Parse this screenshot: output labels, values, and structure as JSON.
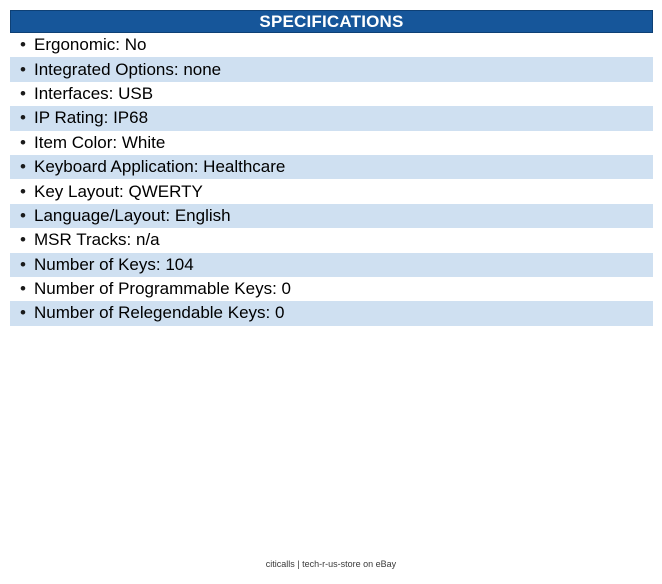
{
  "specs": {
    "title": "SPECIFICATIONS",
    "bullet_char": "•",
    "colors": {
      "header_bg": "#16569A",
      "header_border": "#0E4075",
      "header_text": "#FFFFFF",
      "row_bg": "#FFFFFF",
      "row_alt_bg": "#CFE0F1",
      "text": "#000000"
    },
    "items": [
      {
        "label": "Ergonomic",
        "value": "No",
        "text": "Ergonomic: No"
      },
      {
        "label": "Integrated Options",
        "value": "none",
        "text": "Integrated Options: none"
      },
      {
        "label": "Interfaces",
        "value": "USB",
        "text": "Interfaces: USB"
      },
      {
        "label": "IP Rating",
        "value": "IP68",
        "text": "IP Rating: IP68"
      },
      {
        "label": "Item Color",
        "value": "White",
        "text": "Item Color: White"
      },
      {
        "label": "Keyboard Application",
        "value": "Healthcare",
        "text": "Keyboard Application: Healthcare"
      },
      {
        "label": "Key Layout",
        "value": "QWERTY",
        "text": "Key Layout: QWERTY"
      },
      {
        "label": "Language/Layout",
        "value": "English",
        "text": "Language/Layout: English"
      },
      {
        "label": "MSR Tracks",
        "value": "n/a",
        "text": "MSR Tracks: n/a"
      },
      {
        "label": "Number of Keys",
        "value": "104",
        "text": "Number of Keys: 104"
      },
      {
        "label": "Number of Programmable Keys",
        "value": "0",
        "text": "Number of Programmable Keys: 0"
      },
      {
        "label": "Number of Relegendable Keys",
        "value": "0",
        "text": "Number of Relegendable Keys: 0"
      }
    ]
  },
  "footer": {
    "text": "citicalls | tech-r-us-store on eBay"
  }
}
